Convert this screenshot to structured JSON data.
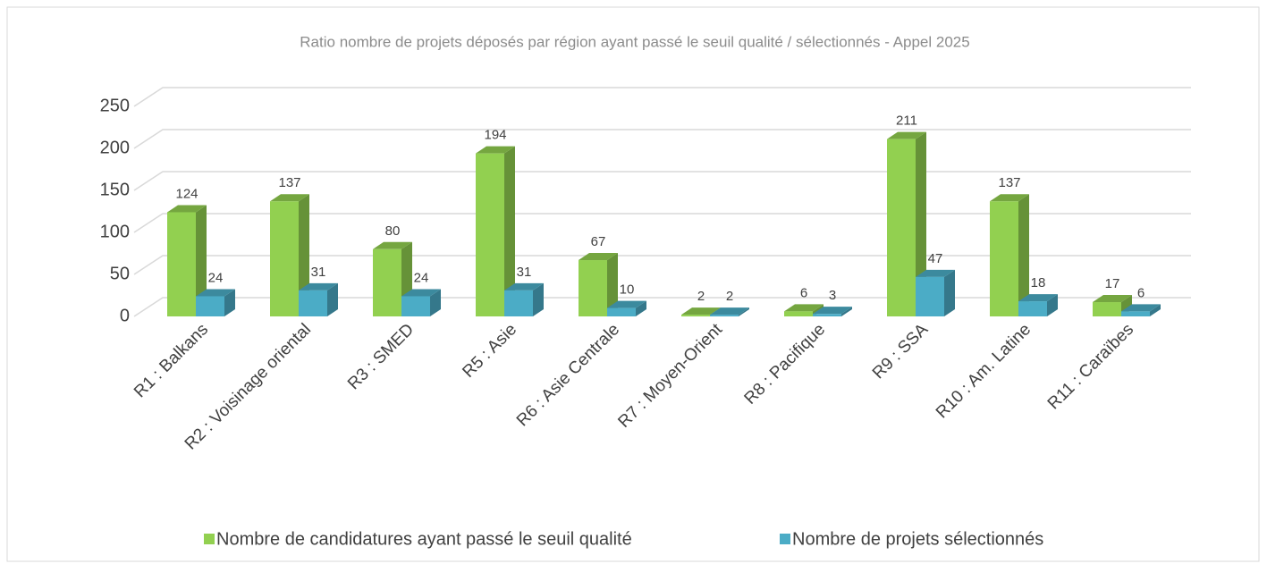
{
  "chart_data": {
    "type": "bar3d",
    "title": "Ratio nombre de projets déposés par région ayant passé le seuil qualité / sélectionnés - Appel 2025",
    "categories": [
      "R1 : Balkans",
      "R2 : Voisinage oriental",
      "R3 : SMED",
      "R5 : Asie",
      "R6 : Asie Centrale",
      "R7 : Moyen-Orient",
      "R8 : Pacifique",
      "R9 : SSA",
      "R10 : Am. Latine",
      "R11 : Caraïbes"
    ],
    "series": [
      {
        "name": "Nombre de candidatures ayant passé le seuil qualité",
        "color": "#92d050",
        "values": [
          124,
          137,
          80,
          194,
          67,
          2,
          6,
          211,
          137,
          17
        ]
      },
      {
        "name": "Nombre de projets sélectionnés",
        "color": "#4bacc6",
        "values": [
          24,
          31,
          24,
          31,
          10,
          2,
          3,
          47,
          18,
          6
        ]
      }
    ],
    "ylim": [
      0,
      250
    ],
    "yticks": [
      0,
      50,
      100,
      150,
      200,
      250
    ],
    "grid": true,
    "legend": "bottom"
  }
}
